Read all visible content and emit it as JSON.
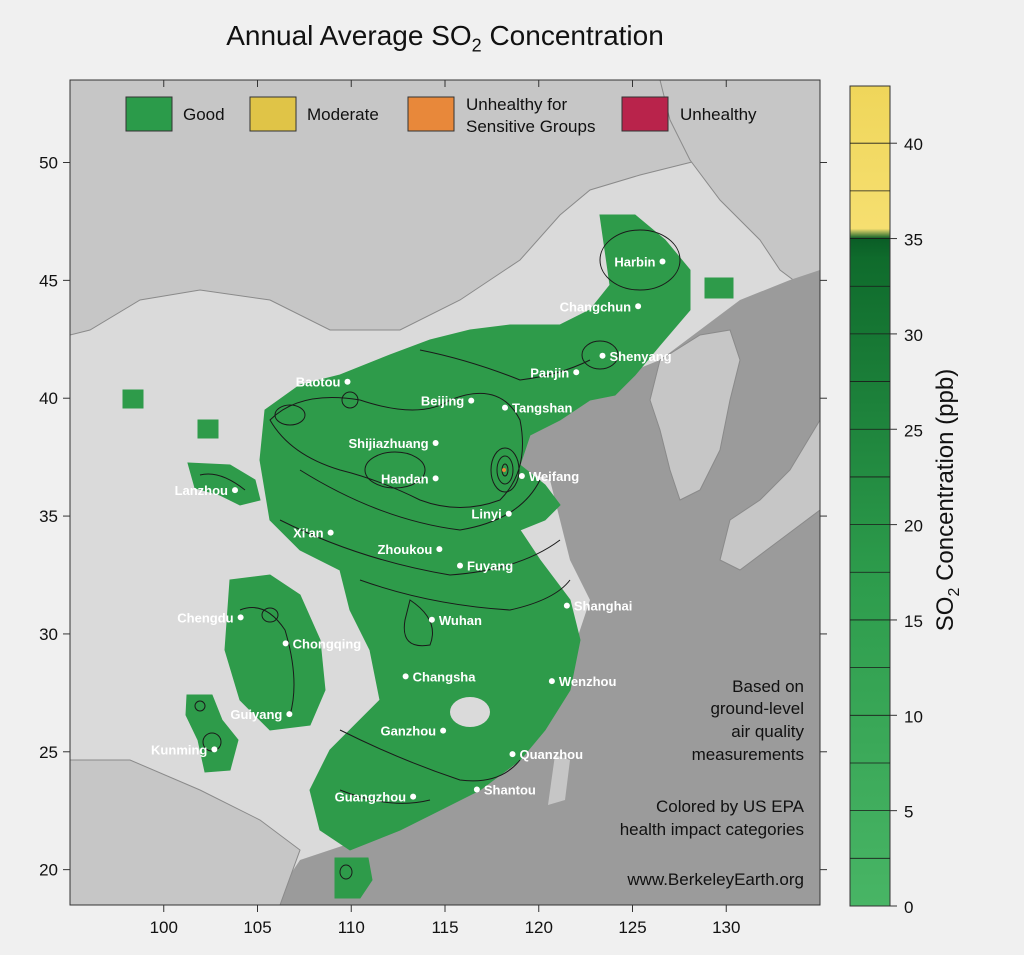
{
  "title": {
    "prefix": "Annual Average SO",
    "sub": "2",
    "suffix": " Concentration"
  },
  "legend": [
    {
      "label": "Good",
      "color": "#2b9b4a"
    },
    {
      "label": "Moderate",
      "color": "#e0c447"
    },
    {
      "label": "Unhealthy for",
      "label2": "Sensitive Groups",
      "color": "#e8883a"
    },
    {
      "label": "Unhealthy",
      "color": "#b9234b"
    }
  ],
  "axes": {
    "x_ticks": [
      100,
      105,
      110,
      115,
      120,
      125,
      130
    ],
    "y_ticks": [
      20,
      25,
      30,
      35,
      40,
      45,
      50
    ],
    "x_range": [
      95,
      135
    ],
    "y_range": [
      18.5,
      53.5
    ]
  },
  "cities": [
    {
      "name": "Harbin",
      "lon": 126.6,
      "lat": 45.8,
      "side": "left"
    },
    {
      "name": "Changchun",
      "lon": 125.3,
      "lat": 43.9,
      "side": "left"
    },
    {
      "name": "Shenyang",
      "lon": 123.4,
      "lat": 41.8,
      "side": "right"
    },
    {
      "name": "Panjin",
      "lon": 122.0,
      "lat": 41.1,
      "side": "left"
    },
    {
      "name": "Baotou",
      "lon": 109.8,
      "lat": 40.7,
      "side": "left"
    },
    {
      "name": "Beijing",
      "lon": 116.4,
      "lat": 39.9,
      "side": "left"
    },
    {
      "name": "Tangshan",
      "lon": 118.2,
      "lat": 39.6,
      "side": "right"
    },
    {
      "name": "Shijiazhuang",
      "lon": 114.5,
      "lat": 38.1,
      "side": "left"
    },
    {
      "name": "Handan",
      "lon": 114.5,
      "lat": 36.6,
      "side": "left"
    },
    {
      "name": "Weifang",
      "lon": 119.1,
      "lat": 36.7,
      "side": "right"
    },
    {
      "name": "Lanzhou",
      "lon": 103.8,
      "lat": 36.1,
      "side": "left"
    },
    {
      "name": "Linyi",
      "lon": 118.4,
      "lat": 35.1,
      "side": "left"
    },
    {
      "name": "Xi'an",
      "lon": 108.9,
      "lat": 34.3,
      "side": "left"
    },
    {
      "name": "Zhoukou",
      "lon": 114.7,
      "lat": 33.6,
      "side": "left"
    },
    {
      "name": "Fuyang",
      "lon": 115.8,
      "lat": 32.9,
      "side": "right"
    },
    {
      "name": "Chengdu",
      "lon": 104.1,
      "lat": 30.7,
      "side": "left"
    },
    {
      "name": "Wuhan",
      "lon": 114.3,
      "lat": 30.6,
      "side": "right"
    },
    {
      "name": "Shanghai",
      "lon": 121.5,
      "lat": 31.2,
      "side": "right"
    },
    {
      "name": "Chongqing",
      "lon": 106.5,
      "lat": 29.6,
      "side": "right"
    },
    {
      "name": "Changsha",
      "lon": 112.9,
      "lat": 28.2,
      "side": "right"
    },
    {
      "name": "Wenzhou",
      "lon": 120.7,
      "lat": 28.0,
      "side": "right"
    },
    {
      "name": "Guiyang",
      "lon": 106.7,
      "lat": 26.6,
      "side": "left"
    },
    {
      "name": "Ganzhou",
      "lon": 114.9,
      "lat": 25.9,
      "side": "left"
    },
    {
      "name": "Kunming",
      "lon": 102.7,
      "lat": 25.1,
      "side": "left"
    },
    {
      "name": "Quanzhou",
      "lon": 118.6,
      "lat": 24.9,
      "side": "right"
    },
    {
      "name": "Shantou",
      "lon": 116.7,
      "lat": 23.4,
      "side": "right"
    },
    {
      "name": "Guangzhou",
      "lon": 113.3,
      "lat": 23.1,
      "side": "left"
    }
  ],
  "notes": {
    "lines": [
      "Based on",
      "ground-level",
      "air quality",
      "measurements"
    ],
    "lines2": [
      "Colored by US EPA",
      "health impact categories"
    ],
    "website": "www.BerkeleyEarth.org"
  },
  "colorbar": {
    "ticks": [
      0,
      5,
      10,
      15,
      20,
      25,
      30,
      35,
      40
    ],
    "max": 43,
    "title_prefix": "SO",
    "title_sub": "2",
    "title_suffix": " Concentration (ppb)"
  }
}
